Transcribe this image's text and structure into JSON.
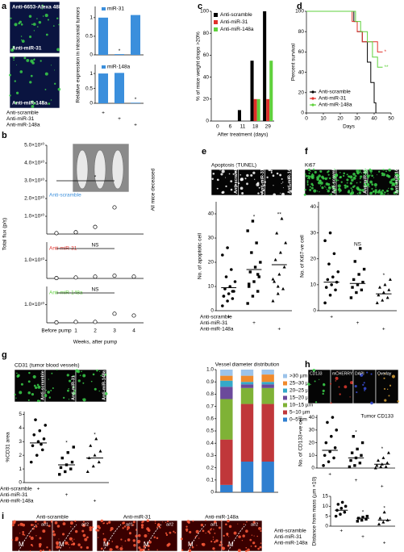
{
  "chart_data": [
    {
      "type": "image",
      "panel": "a",
      "labels": [
        "Anti-6653-Alexa 488",
        "Anti-miR-31",
        "Anti-miR-148a"
      ]
    },
    {
      "type": "bar",
      "ylabel": "Relative expression in intracranial tumors",
      "legend": "miR-31",
      "color": "#3b8fdc",
      "categories": [
        null,
        null,
        null
      ],
      "values": [
        1.0,
        0.02,
        1.07
      ],
      "ylim": [
        0,
        1.3
      ],
      "yticks": [
        0,
        0.5,
        1
      ],
      "significance": [
        null,
        "*",
        null
      ]
    },
    {
      "type": "bar",
      "legend": "miR-148a",
      "color": "#3b8fdc",
      "categories": [
        null,
        null,
        null
      ],
      "values": [
        1.0,
        1.02,
        0.02
      ],
      "ylim": [
        0,
        1.3
      ],
      "yticks": [
        0,
        0.5,
        1
      ],
      "significance": [
        null,
        null,
        "*"
      ],
      "conditions": [
        "Anti-scramble",
        "Anti-miR-31",
        "Anti-miR-148a"
      ],
      "mark": "+"
    },
    {
      "type": "dot_rows",
      "panel": "b",
      "ylabel": "Total flux (p/s)",
      "xlabel": "Weeks, after pump",
      "categories": [
        "Before pump",
        "1",
        "2",
        "3",
        "4"
      ],
      "note": "All mice deceased",
      "groups": [
        {
          "name": "Anti-scramble",
          "color": "#3b8fdc",
          "values": [
            500000000,
            1000000000,
            4000000000,
            15000000000,
            null
          ],
          "ylim": [
            0,
            50000000000
          ],
          "significance": "*",
          "yticks": [
            {
              "value": 10000000000,
              "label": "1.0×10¹⁰"
            },
            {
              "value": 20000000000,
              "label": "2.0×10¹⁰"
            },
            {
              "value": 30000000000,
              "label": "3.0×10¹⁰"
            },
            {
              "value": 40000000000,
              "label": "4.0×10¹⁰"
            },
            {
              "value": 50000000000,
              "label": "5.0×10¹⁰"
            }
          ]
        },
        {
          "name": "Anti-miR-31",
          "color": "#e0302a",
          "values": [
            200000000,
            500000000,
            1000000000,
            1500000000,
            1000000000
          ],
          "ylim": [
            0,
            20000000000
          ],
          "significance": "NS",
          "yticks": [
            {
              "value": 10000000000,
              "label": "1.0×10¹⁰"
            }
          ]
        },
        {
          "name": "Anti-miR-148a",
          "color": "#5fd13c",
          "values": [
            200000000,
            500000000,
            500000000,
            5000000000,
            4000000000
          ],
          "ylim": [
            0,
            20000000000
          ],
          "significance": "NS",
          "yticks": [
            {
              "value": 10000000000,
              "label": "1.0×10¹⁰"
            }
          ]
        }
      ]
    },
    {
      "type": "grouped_bar",
      "panel": "c",
      "ylabel": "% of mice weight drops >20%",
      "xlabel": "After treatment (days)",
      "categories": [
        "0",
        "6",
        "11",
        "18",
        "29"
      ],
      "ylim": [
        0,
        100
      ],
      "yticks": [
        0,
        20,
        40,
        60,
        80,
        100
      ],
      "series": [
        {
          "name": "Anti-scramble",
          "color": "#000000",
          "values": [
            0,
            0,
            10,
            55,
            100
          ]
        },
        {
          "name": "Anti-miR-31",
          "color": "#e0302a",
          "values": [
            0,
            0,
            0,
            20,
            20
          ]
        },
        {
          "name": "Anti-miR-148a",
          "color": "#5fd13c",
          "values": [
            0,
            0,
            0,
            20,
            55
          ]
        }
      ]
    },
    {
      "type": "line",
      "panel": "d",
      "ylabel": "Percent survival",
      "xlabel": "Days",
      "xlim": [
        0,
        50
      ],
      "xticks": [
        0,
        10,
        20,
        30,
        40,
        50
      ],
      "ylim": [
        0,
        100
      ],
      "yticks": [
        0,
        20,
        40,
        60,
        80,
        100
      ],
      "series": [
        {
          "name": "Anti-scramble",
          "color": "#000000",
          "significance": null,
          "x": [
            0,
            28,
            28,
            30,
            30,
            33,
            33,
            36,
            36,
            38,
            38,
            40,
            40,
            41,
            41
          ],
          "values": [
            100,
            100,
            90,
            90,
            80,
            80,
            70,
            70,
            50,
            50,
            30,
            30,
            10,
            10,
            0
          ]
        },
        {
          "name": "Anti-miR-31",
          "color": "#e0302a",
          "significance": "*",
          "x": [
            0,
            27,
            27,
            30,
            30,
            33,
            33,
            42,
            42,
            45
          ],
          "values": [
            100,
            100,
            90,
            90,
            80,
            80,
            70,
            70,
            60,
            60
          ]
        },
        {
          "name": "Anti-miR-148a",
          "color": "#5fd13c",
          "significance": "**",
          "x": [
            0,
            29,
            29,
            32,
            32,
            36,
            36,
            39,
            39,
            42,
            42,
            45
          ],
          "values": [
            100,
            100,
            90,
            90,
            80,
            80,
            70,
            70,
            55,
            55,
            45,
            45
          ]
        }
      ]
    },
    {
      "type": "image",
      "panel": "e",
      "title": "Apoptosis (TUNEL)",
      "labels": [
        "Anti-scramble",
        "Anti-miR-31",
        "Anti-miR-148a"
      ]
    },
    {
      "type": "dots",
      "ylabel": "No. of apoptotic cell",
      "ylim": [
        0,
        45
      ],
      "yticks": [
        0,
        10,
        20,
        30,
        40
      ],
      "groups": [
        [
          2,
          4,
          5,
          6,
          7,
          8,
          9,
          10,
          12,
          14,
          17,
          23,
          26,
          8,
          6
        ],
        [
          3,
          6,
          8,
          10,
          12,
          14,
          16,
          18,
          20,
          24,
          28,
          33,
          37,
          15,
          11
        ],
        [
          4,
          7,
          9,
          12,
          15,
          18,
          21,
          24,
          28,
          32,
          38,
          13,
          10
        ]
      ],
      "means": [
        9.5,
        17,
        19
      ],
      "significance": [
        null,
        "*",
        "**"
      ],
      "conditions": [
        "Anti-scramble",
        "Anti-miR-31",
        "Anti-miR-148a"
      ],
      "mark": "+"
    },
    {
      "type": "image",
      "panel": "f",
      "title": "Ki67",
      "labels": [
        "Anti-scramble",
        "Anti-miR-31",
        "Anti-miR-148a"
      ]
    },
    {
      "type": "dots",
      "ylabel": "No. of Ki67-ve cell",
      "ylim": [
        0,
        42
      ],
      "yticks": [
        0,
        10,
        20,
        30,
        40
      ],
      "groups": [
        [
          3,
          6,
          8,
          9,
          10,
          11,
          12,
          13,
          15,
          18,
          22,
          27,
          30
        ],
        [
          5,
          7,
          8,
          9,
          10,
          11,
          12,
          14,
          16,
          19,
          24
        ],
        [
          3,
          4,
          5,
          6,
          7,
          8,
          9,
          10,
          12
        ]
      ],
      "means": [
        11,
        10.5,
        6.5
      ],
      "significance": [
        null,
        "NS",
        "*"
      ],
      "mark": "+"
    },
    {
      "type": "image",
      "panel": "g",
      "title": "CD31 (tumor blood vessels)",
      "labels": [
        "Anti-scramble",
        "Anti-miR-31",
        "Anti-miR-148a"
      ]
    },
    {
      "type": "dots",
      "ylabel": "%CD31 area",
      "ylim": [
        0,
        5.2
      ],
      "yticks": [
        0,
        1,
        2,
        3,
        4,
        5
      ],
      "groups": [
        [
          1.5,
          2,
          2.4,
          2.7,
          3,
          3.2,
          3.5,
          3.8,
          4.2,
          4.6,
          2.8
        ],
        [
          0.6,
          0.8,
          1,
          1.1,
          1.3,
          1.5,
          1.8,
          2.2,
          2.6
        ],
        [
          0.8,
          1.2,
          1.5,
          1.8,
          2,
          2.3,
          2.7,
          3.2
        ]
      ],
      "means": [
        2.9,
        1.3,
        1.8
      ],
      "significance": [
        null,
        "*",
        "*"
      ],
      "conditions": [
        "Anti-scramble",
        "Anti-miR-31",
        "Anti-miR-148a"
      ],
      "mark": "+"
    },
    {
      "type": "stacked_bar",
      "title": "Vessel diameter distribution",
      "categories": [
        null,
        null,
        null
      ],
      "ylim": [
        0,
        1
      ],
      "yticks": [
        0,
        0.1,
        0.2,
        0.3,
        0.4,
        0.5,
        0.6,
        0.7,
        0.8,
        0.9,
        {
          "value": 1,
          "label": "1.0"
        }
      ],
      "series": [
        {
          "name": "0–5 µm",
          "color": "#2f7fd0",
          "values": [
            0.06,
            0.25,
            0.25
          ]
        },
        {
          "name": "5–10 µm",
          "color": "#c0373a",
          "values": [
            0.37,
            0.47,
            0.47
          ]
        },
        {
          "name": "10–15 µm",
          "color": "#7fb236",
          "values": [
            0.33,
            0.13,
            0.13
          ]
        },
        {
          "name": "15–20 µm",
          "color": "#6b4a9b",
          "values": [
            0.1,
            0.03,
            0.03
          ]
        },
        {
          "name": "20–25 µm",
          "color": "#34a9c9",
          "values": [
            0.05,
            0.02,
            0.02
          ]
        },
        {
          "name": "25–30 µm",
          "color": "#f08a2c",
          "values": [
            0.04,
            0.05,
            0.06
          ]
        },
        {
          "name": ">30 µm",
          "color": "#9cc3ea",
          "values": [
            0.05,
            0.05,
            0.04
          ]
        }
      ]
    },
    {
      "type": "image",
      "panel": "h",
      "labels": [
        "CD133",
        "mCHERRY",
        "DAPI",
        "Overlay"
      ]
    },
    {
      "type": "dots",
      "title": "Tumor CD133",
      "ylabel": "No. of CD133+ve cell",
      "ylim": [
        0,
        42
      ],
      "yticks": [
        0,
        10,
        20,
        30,
        40
      ],
      "groups": [
        [
          2,
          5,
          8,
          10,
          13,
          16,
          20,
          25,
          30,
          36,
          40
        ],
        [
          1,
          2,
          4,
          6,
          8,
          10,
          12,
          15,
          20,
          25
        ],
        [
          0,
          1,
          1,
          2,
          3,
          4,
          6,
          8,
          12
        ]
      ],
      "means": [
        14,
        8,
        3
      ],
      "significance": [
        null,
        "*",
        "*"
      ],
      "mark": "+"
    },
    {
      "type": "image",
      "panel": "i",
      "labels": [
        "Anti-scramble",
        "Anti-miR-31",
        "Anti-miR-148a"
      ],
      "sublabels": [
        "a#1",
        "a#2"
      ],
      "mass": "M"
    },
    {
      "type": "dots",
      "ylabel": "Distance from mass (µm ×10)",
      "ylim": [
        0,
        15
      ],
      "yticks": [
        0,
        5,
        10,
        15
      ],
      "groups": [
        [
          5,
          6,
          7,
          8,
          9,
          10,
          11,
          12
        ],
        [
          2.5,
          3,
          3.5,
          4,
          4.5,
          5
        ],
        [
          1,
          2,
          3,
          4,
          7
        ]
      ],
      "means": [
        8,
        4,
        3
      ],
      "significance": [
        null,
        "*",
        "*"
      ],
      "conditions": [
        "Anti-scramble",
        "Anti-miR-31",
        "Anti-miR-148a"
      ],
      "mark": "+"
    }
  ]
}
